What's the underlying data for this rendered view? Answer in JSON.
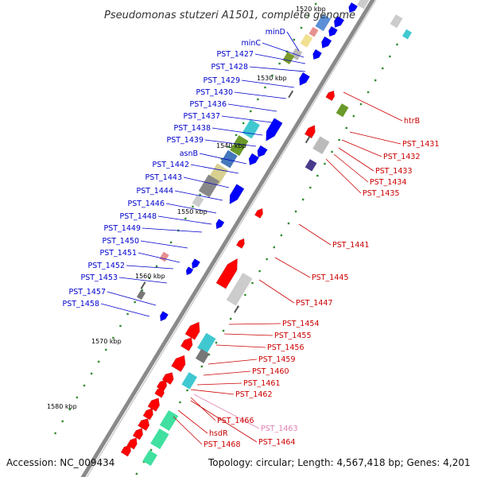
{
  "title": "Pseudomonas stutzeri A1501, complete genome",
  "footer": {
    "accession": "Accession: NC_009434",
    "topology": "Topology: circular; Length: 4,567,418 bp; Genes: 4,201"
  },
  "scale_labels": [
    "1520 kbp",
    "1530 kbp",
    "1540 kbp",
    "1550 kbp",
    "1560 kbp",
    "1570 kbp",
    "1580 kbp"
  ],
  "colors": {
    "blue_label": "#0000cc",
    "red_label": "#cc0000",
    "pink_label": "#e07fb0",
    "backbone": "#8a8a8a",
    "forward_gene": "#0000ff",
    "reverse_gene": "#ff0000"
  },
  "left_labels": [
    "minD",
    "minC",
    "PST_1427",
    "PST_1428",
    "PST_1429",
    "PST_1430",
    "PST_1436",
    "PST_1437",
    "PST_1438",
    "PST_1439",
    "asnB",
    "PST_1442",
    "PST_1443",
    "PST_1444",
    "PST_1446",
    "PST_1448",
    "PST_1449",
    "PST_1450",
    "PST_1451",
    "PST_1452",
    "PST_1453",
    "PST_1457",
    "PST_1458"
  ],
  "right_labels": [
    "htrB",
    "PST_1431",
    "PST_1432",
    "PST_1433",
    "PST_1434",
    "PST_1435",
    "PST_1441",
    "PST_1445",
    "PST_1447",
    "PST_1454",
    "PST_1455",
    "PST_1456",
    "PST_1459",
    "PST_1460",
    "PST_1461",
    "PST_1462",
    "PST_1466",
    "PST_1463",
    "PST_1464",
    "hsdR",
    "PST_1468"
  ]
}
